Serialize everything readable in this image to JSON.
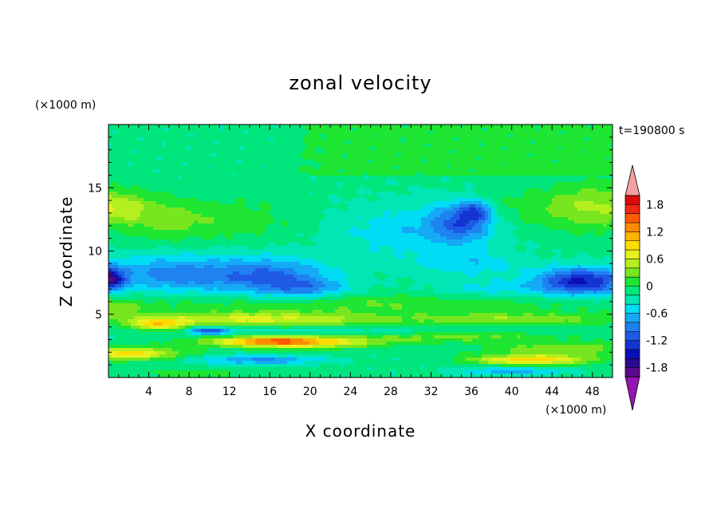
{
  "chart_data": {
    "type": "heatmap",
    "title": "zonal velocity",
    "xlabel": "X coordinate",
    "ylabel": "Z coordinate",
    "x_unit": "(×1000 m)",
    "y_unit": "(×1000 m)",
    "time_label": "t=190800 s",
    "xlim": [
      0,
      50
    ],
    "ylim": [
      0,
      20
    ],
    "x_ticks": [
      4,
      8,
      12,
      16,
      20,
      24,
      28,
      32,
      36,
      40,
      44,
      48
    ],
    "y_ticks": [
      5,
      10,
      15
    ],
    "colorbar": {
      "levels": [
        -2.0,
        -1.8,
        -1.6,
        -1.4,
        -1.2,
        -1.0,
        -0.8,
        -0.6,
        -0.4,
        -0.2,
        0.0,
        0.2,
        0.4,
        0.6,
        0.8,
        1.0,
        1.2,
        1.4,
        1.6,
        1.8,
        2.0
      ],
      "labels": [
        1.8,
        1.2,
        0.6,
        0,
        -0.6,
        -1.2,
        -1.8
      ],
      "colors": [
        "#5a0a8c",
        "#2a0a8c",
        "#0a10b4",
        "#1434d2",
        "#1e5ae6",
        "#1e82f0",
        "#14aaf5",
        "#00dcf5",
        "#00e6b4",
        "#00e67d",
        "#1ee632",
        "#78e61e",
        "#b4f01e",
        "#e6f01e",
        "#ffdc00",
        "#ffb400",
        "#ff8c00",
        "#ff5a00",
        "#f02814",
        "#dc0a0a"
      ],
      "under_color": "#9614b4",
      "over_color": "#f5a0a0"
    },
    "features": [
      {
        "x": 0,
        "z": 13.5,
        "sx": 4,
        "sz": 1.3,
        "v": 0.7
      },
      {
        "x": 6,
        "z": 12.5,
        "sx": 5,
        "sz": 1.6,
        "v": 0.4
      },
      {
        "x": 14,
        "z": 12.5,
        "sx": 6,
        "sz": 1.8,
        "v": 0.2
      },
      {
        "x": 48,
        "z": 13.5,
        "sx": 5,
        "sz": 1.8,
        "v": 0.6
      },
      {
        "x": 40,
        "z": 13.5,
        "sx": 4,
        "sz": 1.5,
        "v": 0.2
      },
      {
        "x": 35,
        "z": 12.3,
        "sx": 3,
        "sz": 1.5,
        "v": -0.8
      },
      {
        "x": 36.5,
        "z": 13.2,
        "sx": 1.5,
        "sz": 0.8,
        "v": -0.7
      },
      {
        "x": 30,
        "z": 11.5,
        "sx": 8,
        "sz": 2.2,
        "v": -0.4
      },
      {
        "x": 0,
        "z": 7.8,
        "sx": 1.5,
        "sz": 0.9,
        "v": -1.5
      },
      {
        "x": 6,
        "z": 8.2,
        "sx": 7,
        "sz": 1.5,
        "v": -0.7
      },
      {
        "x": 16,
        "z": 8.0,
        "sx": 6,
        "sz": 1.5,
        "v": -0.8
      },
      {
        "x": 20,
        "z": 7.0,
        "sx": 4,
        "sz": 0.8,
        "v": -0.5
      },
      {
        "x": 47,
        "z": 7.6,
        "sx": 4.5,
        "sz": 1.1,
        "v": -1.3
      },
      {
        "x": 36,
        "z": 9.0,
        "sx": 5,
        "sz": 1.0,
        "v": -0.35
      },
      {
        "x": 38,
        "z": 7.0,
        "sx": 6,
        "sz": 0.8,
        "v": -0.3
      },
      {
        "x": 25,
        "z": 5.8,
        "sx": 25,
        "sz": 0.8,
        "v": 0.35
      },
      {
        "x": 0,
        "z": 5.5,
        "sx": 4,
        "sz": 0.8,
        "v": 0.35
      },
      {
        "x": 15,
        "z": 4.6,
        "sx": 12,
        "sz": 0.55,
        "v": 0.8
      },
      {
        "x": 40,
        "z": 4.6,
        "sx": 10,
        "sz": 0.5,
        "v": 0.5
      },
      {
        "x": 5,
        "z": 4.2,
        "sx": 3,
        "sz": 0.5,
        "v": 0.9
      },
      {
        "x": 20,
        "z": 3.7,
        "sx": 14,
        "sz": 0.35,
        "v": -0.2
      },
      {
        "x": 10,
        "z": 3.7,
        "sx": 2,
        "sz": 0.3,
        "v": -1.0
      },
      {
        "x": 18,
        "z": 2.8,
        "sx": 8,
        "sz": 0.45,
        "v": 1.3
      },
      {
        "x": 16,
        "z": 2.9,
        "sx": 4,
        "sz": 0.3,
        "v": 0.5
      },
      {
        "x": 2,
        "z": 1.9,
        "sx": 5,
        "sz": 0.5,
        "v": 1.0
      },
      {
        "x": 42,
        "z": 1.4,
        "sx": 6,
        "sz": 0.4,
        "v": 1.1
      },
      {
        "x": 45,
        "z": 2.3,
        "sx": 8,
        "sz": 0.5,
        "v": 0.5
      },
      {
        "x": 35,
        "z": 3.2,
        "sx": 10,
        "sz": 0.4,
        "v": 0.4
      },
      {
        "x": 15,
        "z": 1.4,
        "sx": 6,
        "sz": 0.35,
        "v": -0.7
      },
      {
        "x": 40,
        "z": 0.5,
        "sx": 5,
        "sz": 0.3,
        "v": -0.6
      },
      {
        "x": 8,
        "z": 0.3,
        "sx": 6,
        "sz": 0.4,
        "v": 0.25
      }
    ],
    "upper_region": {
      "x_from": 19,
      "z_from": 16,
      "v": 0.05
    },
    "background_v": -0.15
  }
}
